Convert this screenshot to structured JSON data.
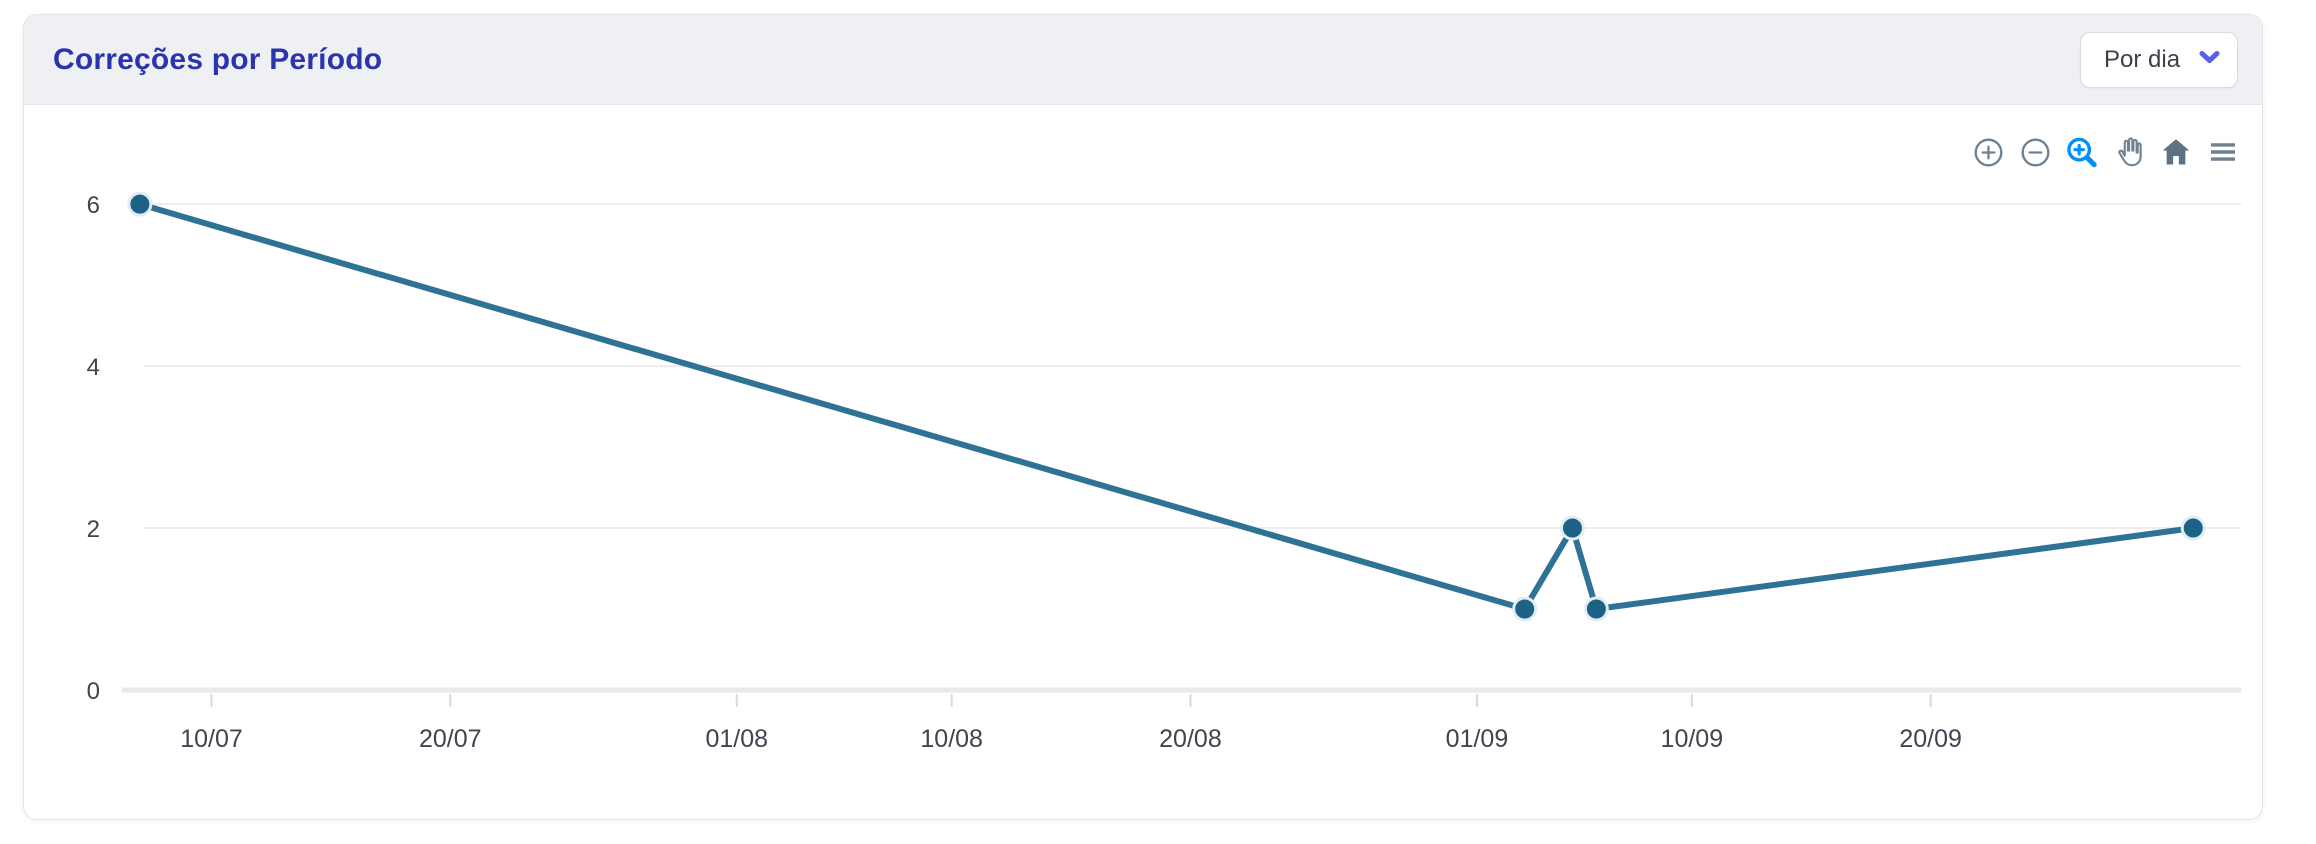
{
  "card": {
    "title": "Correções por Período",
    "period_select": {
      "value": "Por dia",
      "icon": "chevron-down-icon"
    }
  },
  "toolbar": {
    "buttons": [
      {
        "icon": "zoom-in-icon",
        "state": "default"
      },
      {
        "icon": "zoom-out-icon",
        "state": "default"
      },
      {
        "icon": "selection-zoom-icon",
        "state": "active"
      },
      {
        "icon": "pan-icon",
        "state": "default"
      },
      {
        "icon": "home-icon",
        "state": "default"
      },
      {
        "icon": "menu-icon",
        "state": "default"
      }
    ]
  },
  "chart_data": {
    "type": "line",
    "title": "Correções por Período",
    "series": [
      {
        "name": "Correções",
        "points": [
          {
            "date": "07/07",
            "day": 0,
            "value": 6
          },
          {
            "date": "03/09",
            "day": 58,
            "value": 1
          },
          {
            "date": "05/09",
            "day": 60,
            "value": 2
          },
          {
            "date": "06/09",
            "day": 61,
            "value": 1
          },
          {
            "date": "01/10",
            "day": 86,
            "value": 2
          }
        ]
      }
    ],
    "x_ticks": [
      {
        "label": "10/07",
        "day": 3
      },
      {
        "label": "20/07",
        "day": 13
      },
      {
        "label": "01/08",
        "day": 25
      },
      {
        "label": "10/08",
        "day": 34
      },
      {
        "label": "20/08",
        "day": 44
      },
      {
        "label": "01/09",
        "day": 56
      },
      {
        "label": "10/09",
        "day": 65
      },
      {
        "label": "20/09",
        "day": 75
      }
    ],
    "y_ticks": [
      0,
      2,
      4,
      6
    ],
    "ylim": [
      0,
      7.2
    ],
    "x_domain_days": [
      -1,
      88
    ],
    "grid": "horizontal-only",
    "legend": "none"
  },
  "colors": {
    "title_color": "#2a34ae",
    "header_bg": "#eff0f4",
    "line_color": "#2e7396",
    "marker_color": "#1d6285",
    "toolbar_active": "#008ffb",
    "toolbar_icon": "#6e8192",
    "chevron_color": "#5a60e6"
  }
}
